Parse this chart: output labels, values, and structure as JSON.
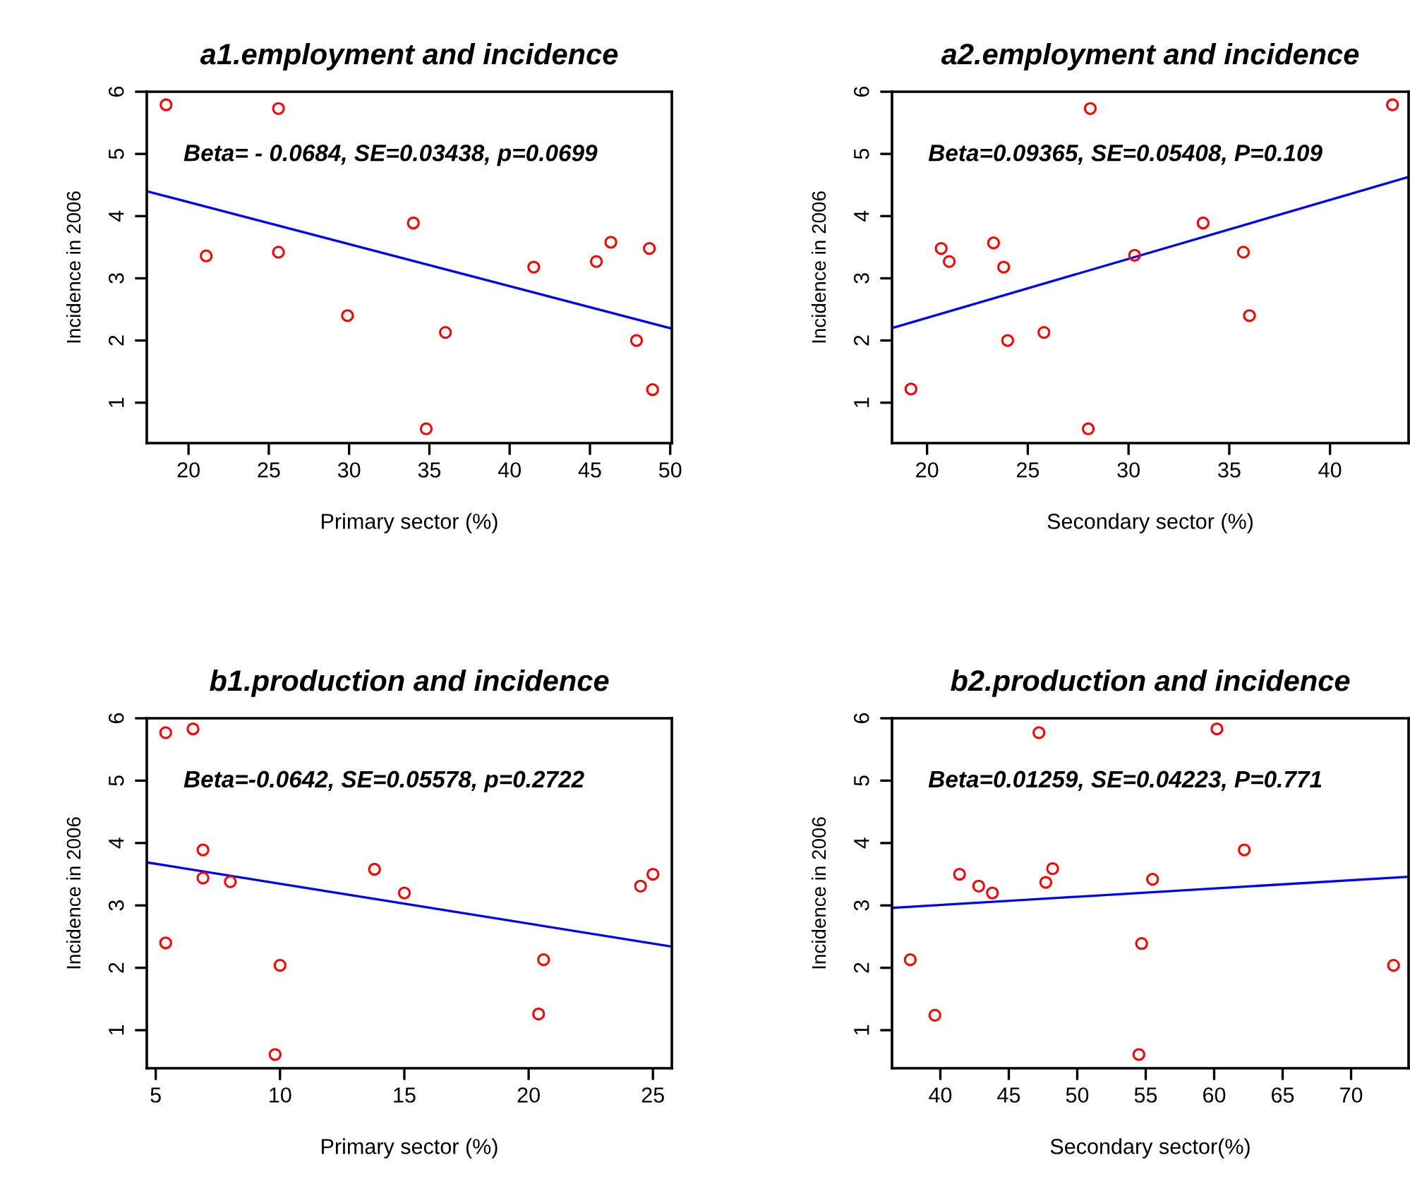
{
  "chart_data": [
    {
      "type": "scatter",
      "title": "a1.employment and incidence",
      "xlabel": "Primary sector (%)",
      "ylabel": "Incidence in 2006",
      "annotations": [
        "Beta= - 0.0684, SE=0.03438, p=0.0699"
      ],
      "xlim": [
        17.4,
        50.1
      ],
      "ylim": [
        0.35,
        6.0
      ],
      "xticks": [
        20,
        25,
        30,
        35,
        40,
        45,
        50
      ],
      "yticks": [
        1,
        2,
        3,
        4,
        5,
        6
      ],
      "grid": false,
      "series": [
        {
          "marker": "circle",
          "color": "#ff0000",
          "x": [
            18.6,
            25.6,
            21.1,
            25.6,
            29.9,
            34.0,
            34.8,
            36.0,
            41.5,
            45.4,
            46.3,
            48.7,
            47.9,
            48.9
          ],
          "values": [
            5.79,
            5.73,
            3.36,
            3.42,
            2.4,
            3.89,
            0.58,
            2.13,
            3.18,
            3.27,
            3.58,
            3.48,
            2.0,
            1.21
          ]
        },
        {
          "type": "line",
          "color": "#0000ff",
          "x": [
            17.4,
            50.1
          ],
          "values": [
            4.4,
            2.19
          ]
        }
      ]
    },
    {
      "type": "scatter",
      "title": "a2.employment and incidence",
      "xlabel": "Secondary sector (%)",
      "ylabel": "Incidence in 2006",
      "annotations": [
        "Beta=0.09365, SE=0.05408, P=0.109"
      ],
      "xlim": [
        18.26,
        43.9
      ],
      "ylim": [
        0.35,
        6.0
      ],
      "xticks": [
        20,
        25,
        30,
        35,
        40
      ],
      "yticks": [
        1,
        2,
        3,
        4,
        5,
        6
      ],
      "grid": false,
      "series": [
        {
          "marker": "circle",
          "color": "#ff0000",
          "x": [
            19.2,
            20.7,
            21.1,
            23.3,
            23.8,
            24.0,
            25.8,
            28.1,
            28.0,
            30.3,
            33.7,
            35.7,
            36.0,
            43.1
          ],
          "values": [
            1.22,
            3.48,
            3.27,
            3.57,
            3.18,
            2.0,
            2.13,
            5.73,
            0.58,
            3.37,
            3.89,
            3.42,
            2.4,
            5.79
          ]
        },
        {
          "type": "line",
          "color": "#0000ff",
          "x": [
            18.26,
            43.9
          ],
          "values": [
            2.2,
            4.63
          ]
        }
      ]
    },
    {
      "type": "scatter",
      "title": "b1.production and incidence",
      "xlabel": "Primary sector (%)",
      "ylabel": "Incidence in 2006",
      "annotations": [
        "Beta=-0.0642, SE=0.05578, p=0.2722"
      ],
      "xlim": [
        4.64,
        25.76
      ],
      "ylim": [
        0.39,
        6.0
      ],
      "xticks": [
        5,
        10,
        15,
        20,
        25
      ],
      "yticks": [
        1,
        2,
        3,
        4,
        5,
        6
      ],
      "grid": false,
      "series": [
        {
          "marker": "circle",
          "color": "#ff0000",
          "x": [
            5.4,
            6.5,
            5.4,
            6.9,
            6.9,
            8.0,
            10.0,
            9.8,
            13.8,
            15.0,
            20.6,
            20.4,
            24.5,
            25.0
          ],
          "values": [
            5.77,
            5.83,
            2.4,
            3.89,
            3.44,
            3.38,
            2.04,
            0.61,
            3.58,
            3.2,
            2.13,
            1.26,
            3.31,
            3.5
          ]
        },
        {
          "type": "line",
          "color": "#0000ff",
          "x": [
            4.64,
            25.76
          ],
          "values": [
            3.69,
            2.34
          ]
        }
      ]
    },
    {
      "type": "scatter",
      "title": "b2.production and incidence",
      "xlabel": "Secondary sector(%)",
      "ylabel": "Incidence in 2006",
      "annotations": [
        "Beta=0.01259, SE=0.04223, P=0.771"
      ],
      "xlim": [
        36.47,
        74.2
      ],
      "ylim": [
        0.39,
        6.0
      ],
      "xticks": [
        40,
        45,
        50,
        55,
        60,
        65,
        70
      ],
      "yticks": [
        1,
        2,
        3,
        4,
        5,
        6
      ],
      "grid": false,
      "series": [
        {
          "marker": "circle",
          "color": "#ff0000",
          "x": [
            37.8,
            39.6,
            41.4,
            42.8,
            43.8,
            47.2,
            47.7,
            48.2,
            54.7,
            54.5,
            55.5,
            60.2,
            62.2,
            73.1
          ],
          "values": [
            2.13,
            1.24,
            3.5,
            3.31,
            3.2,
            5.77,
            3.37,
            3.59,
            2.39,
            0.61,
            3.42,
            5.83,
            3.89,
            2.04
          ]
        },
        {
          "type": "line",
          "color": "#0000ff",
          "x": [
            36.47,
            74.2
          ],
          "values": [
            2.96,
            3.46
          ]
        }
      ]
    }
  ]
}
